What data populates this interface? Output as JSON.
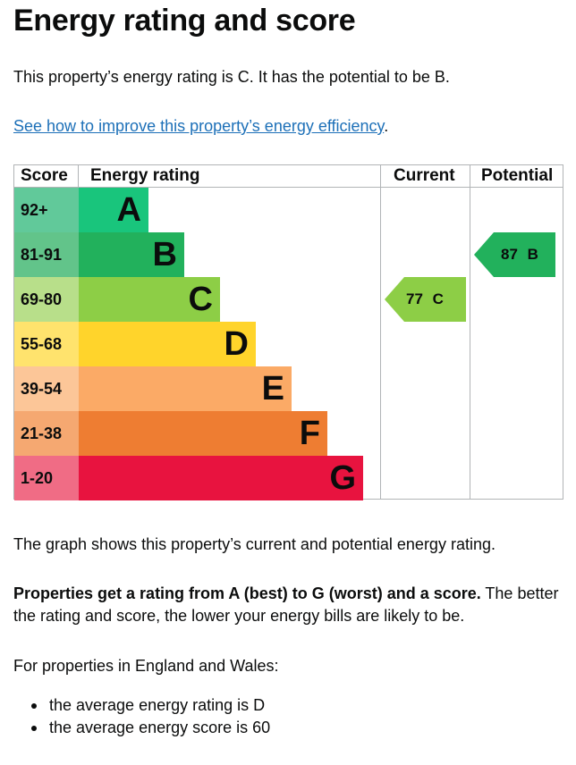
{
  "page": {
    "title": "Energy rating and score",
    "intro": "This property’s energy rating is C. It has the potential to be B.",
    "link_text": "See how to improve this property’s energy efficiency",
    "link_suffix": "."
  },
  "table": {
    "headers": {
      "score": "Score",
      "rating": "Energy rating",
      "current": "Current",
      "potential": "Potential"
    },
    "bands": [
      {
        "score": "92+",
        "letter": "A",
        "band_color": "#19c57c",
        "score_color": "#61c99a"
      },
      {
        "score": "81-91",
        "letter": "B",
        "band_color": "#22b15c",
        "score_color": "#62c48a"
      },
      {
        "score": "69-80",
        "letter": "C",
        "band_color": "#8dce46",
        "score_color": "#b8df8a"
      },
      {
        "score": "55-68",
        "letter": "D",
        "band_color": "#ffd42b",
        "score_color": "#ffe36d"
      },
      {
        "score": "39-54",
        "letter": "E",
        "band_color": "#fbaa66",
        "score_color": "#fcc698"
      },
      {
        "score": "21-38",
        "letter": "F",
        "band_color": "#ee7d32",
        "score_color": "#f5a871"
      },
      {
        "score": "1-20",
        "letter": "G",
        "band_color": "#e8133f",
        "score_color": "#f06c85"
      }
    ],
    "current": {
      "score": "77",
      "letter": "C",
      "color": "#8dce46"
    },
    "potential": {
      "score": "87",
      "letter": "B",
      "color": "#22b15c"
    }
  },
  "text": {
    "graph_note": "The graph shows this property’s current and potential energy rating.",
    "bold_lead": "Properties get a rating from A (best) to G (worst) and a score.",
    "rest": " The better the rating and score, the lower your energy bills are likely to be.",
    "england_wales": "For properties in England and Wales:",
    "bullets": [
      "the average energy rating is D",
      "the average energy score is 60"
    ]
  }
}
